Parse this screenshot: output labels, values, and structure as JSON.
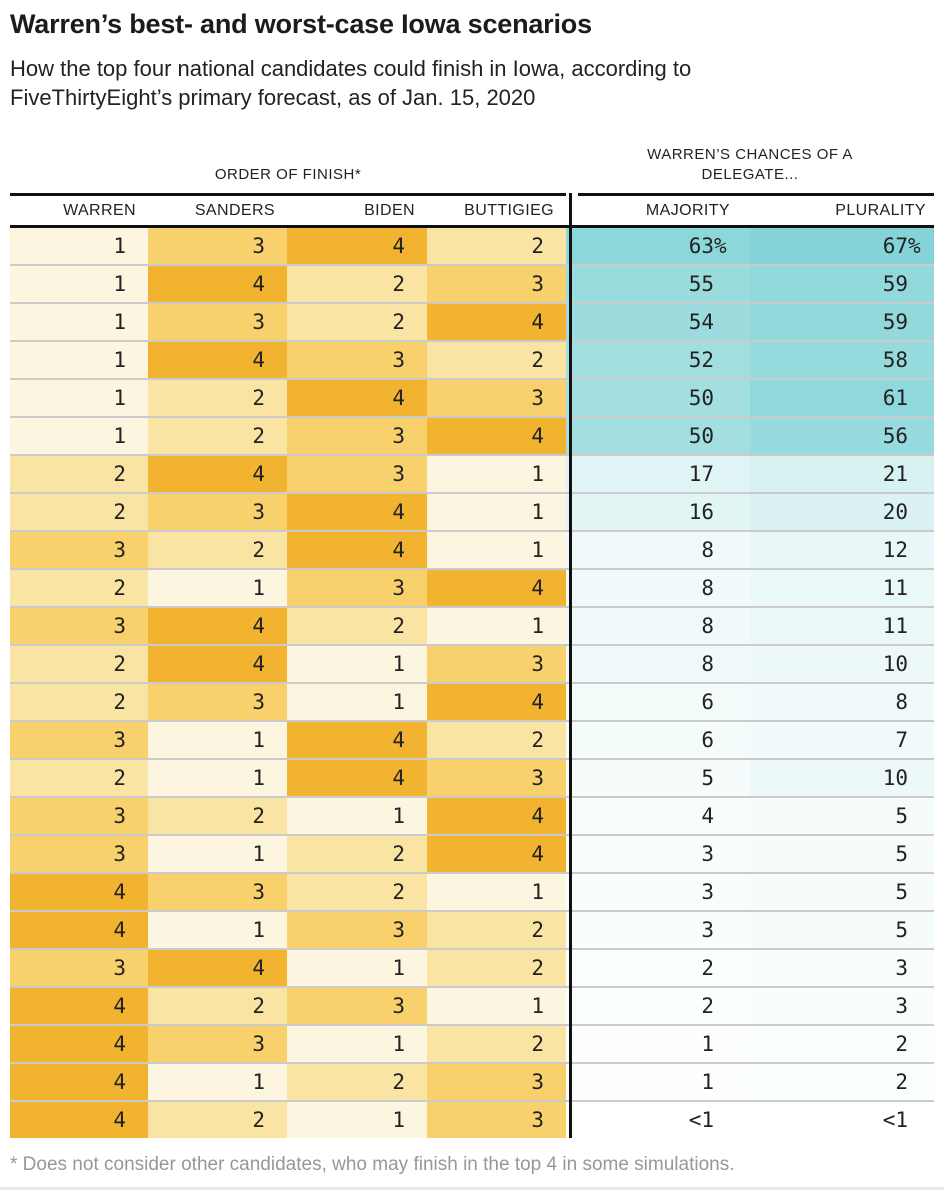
{
  "header": {
    "title": "Warren’s best- and worst-case Iowa scenarios",
    "subtitle": "How the top four national candidates could finish in Iowa, according to\nFiveThirtyEight’s primary forecast, as of Jan. 15, 2020"
  },
  "table": {
    "left_caption": "ORDER OF FINISH*",
    "right_caption": "WARREN’S CHANCES OF A\nDELEGATE..."
  },
  "footnote": "* Does not consider other candidates, who may finish in the top 4 in some simulations.",
  "colors": {
    "rank": {
      "1": "#FCF5DF",
      "2": "#F9E4A4",
      "3": "#F8D06C",
      "4": "#F2B331"
    },
    "teal_max": "#84D4D7",
    "teal_max_value": 67,
    "rule": "#101010",
    "row_divider": "#CBCBCB",
    "text": "#222222",
    "footnote": "#979797"
  },
  "chart_data": {
    "type": "table",
    "title": "Warren’s best- and worst-case Iowa scenarios",
    "columns": [
      "WARREN",
      "SANDERS",
      "BIDEN",
      "BUTTIGIEG",
      "MAJORITY",
      "PLURALITY"
    ],
    "column_groups": [
      "ORDER OF FINISH*",
      "WARREN’S CHANCES OF A DELEGATE..."
    ],
    "rows": [
      {
        "order": [
          1,
          3,
          4,
          2
        ],
        "majority": "63%",
        "majority_value": 63,
        "plurality": "67%",
        "plurality_value": 67
      },
      {
        "order": [
          1,
          4,
          2,
          3
        ],
        "majority": "55",
        "majority_value": 55,
        "plurality": "59",
        "plurality_value": 59
      },
      {
        "order": [
          1,
          3,
          2,
          4
        ],
        "majority": "54",
        "majority_value": 54,
        "plurality": "59",
        "plurality_value": 59
      },
      {
        "order": [
          1,
          4,
          3,
          2
        ],
        "majority": "52",
        "majority_value": 52,
        "plurality": "58",
        "plurality_value": 58
      },
      {
        "order": [
          1,
          2,
          4,
          3
        ],
        "majority": "50",
        "majority_value": 50,
        "plurality": "61",
        "plurality_value": 61
      },
      {
        "order": [
          1,
          2,
          3,
          4
        ],
        "majority": "50",
        "majority_value": 50,
        "plurality": "56",
        "plurality_value": 56
      },
      {
        "order": [
          2,
          4,
          3,
          1
        ],
        "majority": "17",
        "majority_value": 17,
        "plurality": "21",
        "plurality_value": 21
      },
      {
        "order": [
          2,
          3,
          4,
          1
        ],
        "majority": "16",
        "majority_value": 16,
        "plurality": "20",
        "plurality_value": 20
      },
      {
        "order": [
          3,
          2,
          4,
          1
        ],
        "majority": "8",
        "majority_value": 8,
        "plurality": "12",
        "plurality_value": 12
      },
      {
        "order": [
          2,
          1,
          3,
          4
        ],
        "majority": "8",
        "majority_value": 8,
        "plurality": "11",
        "plurality_value": 11
      },
      {
        "order": [
          3,
          4,
          2,
          1
        ],
        "majority": "8",
        "majority_value": 8,
        "plurality": "11",
        "plurality_value": 11
      },
      {
        "order": [
          2,
          4,
          1,
          3
        ],
        "majority": "8",
        "majority_value": 8,
        "plurality": "10",
        "plurality_value": 10
      },
      {
        "order": [
          2,
          3,
          1,
          4
        ],
        "majority": "6",
        "majority_value": 6,
        "plurality": "8",
        "plurality_value": 8
      },
      {
        "order": [
          3,
          1,
          4,
          2
        ],
        "majority": "6",
        "majority_value": 6,
        "plurality": "7",
        "plurality_value": 7
      },
      {
        "order": [
          2,
          1,
          4,
          3
        ],
        "majority": "5",
        "majority_value": 5,
        "plurality": "10",
        "plurality_value": 10
      },
      {
        "order": [
          3,
          2,
          1,
          4
        ],
        "majority": "4",
        "majority_value": 4,
        "plurality": "5",
        "plurality_value": 5
      },
      {
        "order": [
          3,
          1,
          2,
          4
        ],
        "majority": "3",
        "majority_value": 3,
        "plurality": "5",
        "plurality_value": 5
      },
      {
        "order": [
          4,
          3,
          2,
          1
        ],
        "majority": "3",
        "majority_value": 3,
        "plurality": "5",
        "plurality_value": 5
      },
      {
        "order": [
          4,
          1,
          3,
          2
        ],
        "majority": "3",
        "majority_value": 3,
        "plurality": "5",
        "plurality_value": 5
      },
      {
        "order": [
          3,
          4,
          1,
          2
        ],
        "majority": "2",
        "majority_value": 2,
        "plurality": "3",
        "plurality_value": 3
      },
      {
        "order": [
          4,
          2,
          3,
          1
        ],
        "majority": "2",
        "majority_value": 2,
        "plurality": "3",
        "plurality_value": 3
      },
      {
        "order": [
          4,
          3,
          1,
          2
        ],
        "majority": "1",
        "majority_value": 1,
        "plurality": "2",
        "plurality_value": 2
      },
      {
        "order": [
          4,
          1,
          2,
          3
        ],
        "majority": "1",
        "majority_value": 1,
        "plurality": "2",
        "plurality_value": 2
      },
      {
        "order": [
          4,
          2,
          1,
          3
        ],
        "majority": "<1",
        "majority_value": 0.5,
        "plurality": "<1",
        "plurality_value": 0.5
      }
    ]
  }
}
